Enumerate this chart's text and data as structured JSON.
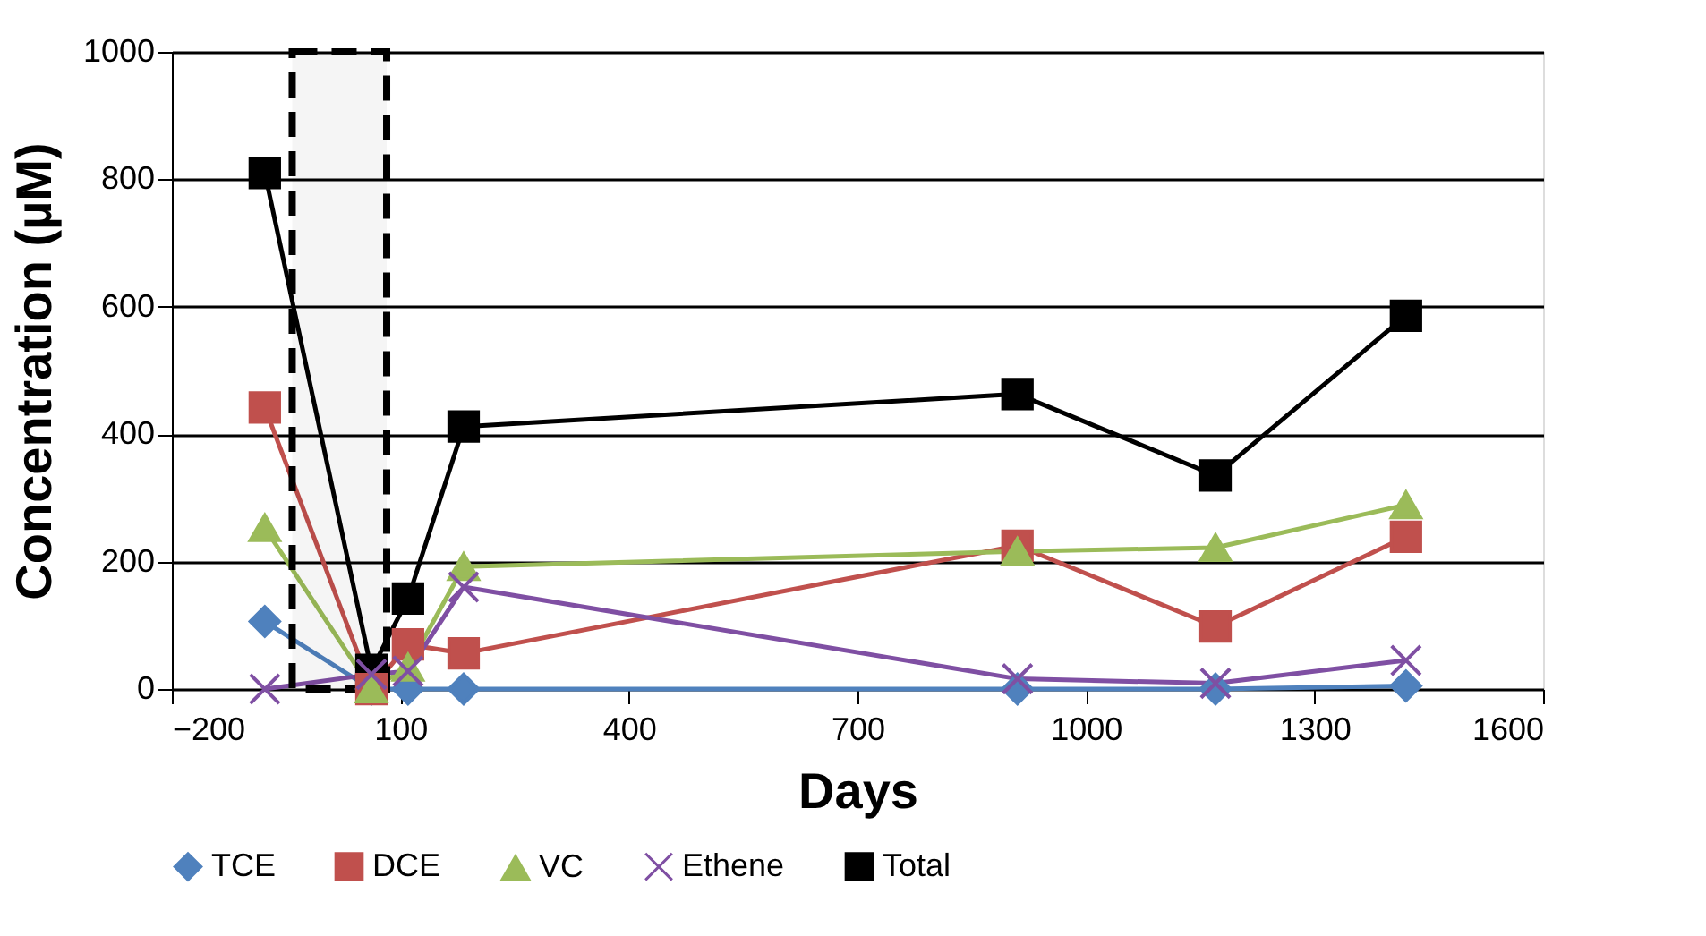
{
  "chart_data": {
    "type": "line",
    "xlabel": "Days",
    "ylabel": "Concentration (µM)",
    "x": [
      -78,
      62,
      110,
      183,
      910,
      1170,
      1420
    ],
    "series": [
      {
        "name": "TCE",
        "color": "#4f81bd",
        "marker": "diamond",
        "values": [
          106,
          0,
          0,
          0,
          0,
          0,
          5
        ]
      },
      {
        "name": "DCE",
        "color": "#c0504d",
        "marker": "square",
        "values": [
          442,
          0,
          70,
          56,
          225,
          98,
          239
        ]
      },
      {
        "name": "VC",
        "color": "#9bbb59",
        "marker": "triangle",
        "values": [
          253,
          0,
          34,
          192,
          216,
          222,
          289
        ]
      },
      {
        "name": "Ethene",
        "color": "#7f4fa3",
        "marker": "cross",
        "values": [
          0,
          23,
          28,
          160,
          16,
          9,
          45
        ]
      },
      {
        "name": "Total",
        "color": "#000000",
        "marker": "square",
        "values": [
          810,
          30,
          142,
          412,
          463,
          335,
          586
        ]
      }
    ],
    "xlim": [
      -200,
      1600
    ],
    "xticks": [
      -200,
      100,
      400,
      700,
      1000,
      1300,
      1600
    ],
    "ylim": [
      0,
      1000
    ],
    "yticks": [
      0,
      200,
      400,
      600,
      800,
      1000
    ],
    "bands": [
      {
        "axis": "x",
        "from": -42,
        "to": 82,
        "color": "#000000"
      }
    ],
    "grid": "y",
    "legend": "bottom",
    "line_style": "solid"
  }
}
